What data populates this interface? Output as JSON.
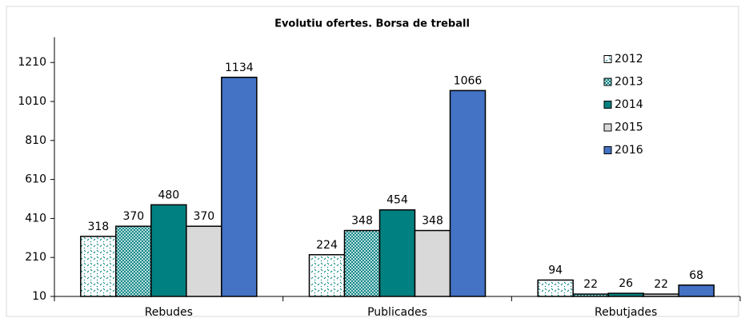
{
  "chart_data": {
    "type": "bar",
    "title": "Evolutiu ofertes. Borsa de treball",
    "categories": [
      "Rebudes",
      "Publicades",
      "Rebutjades"
    ],
    "series": [
      {
        "name": "2012",
        "color": "#ffffff",
        "values": [
          318,
          224,
          94
        ]
      },
      {
        "name": "2013",
        "color": "#ffffff",
        "values": [
          370,
          348,
          22
        ]
      },
      {
        "name": "2014",
        "color": "#008080",
        "values": [
          480,
          454,
          26
        ]
      },
      {
        "name": "2015",
        "color": "#d9d9d9",
        "values": [
          370,
          348,
          22
        ]
      },
      {
        "name": "2016",
        "color": "#4472c4",
        "values": [
          1134,
          1066,
          68
        ]
      }
    ],
    "ylim": [
      10,
      1340
    ],
    "yticks": [
      10,
      210,
      410,
      610,
      810,
      1010,
      1210
    ],
    "legend": "upper right"
  }
}
